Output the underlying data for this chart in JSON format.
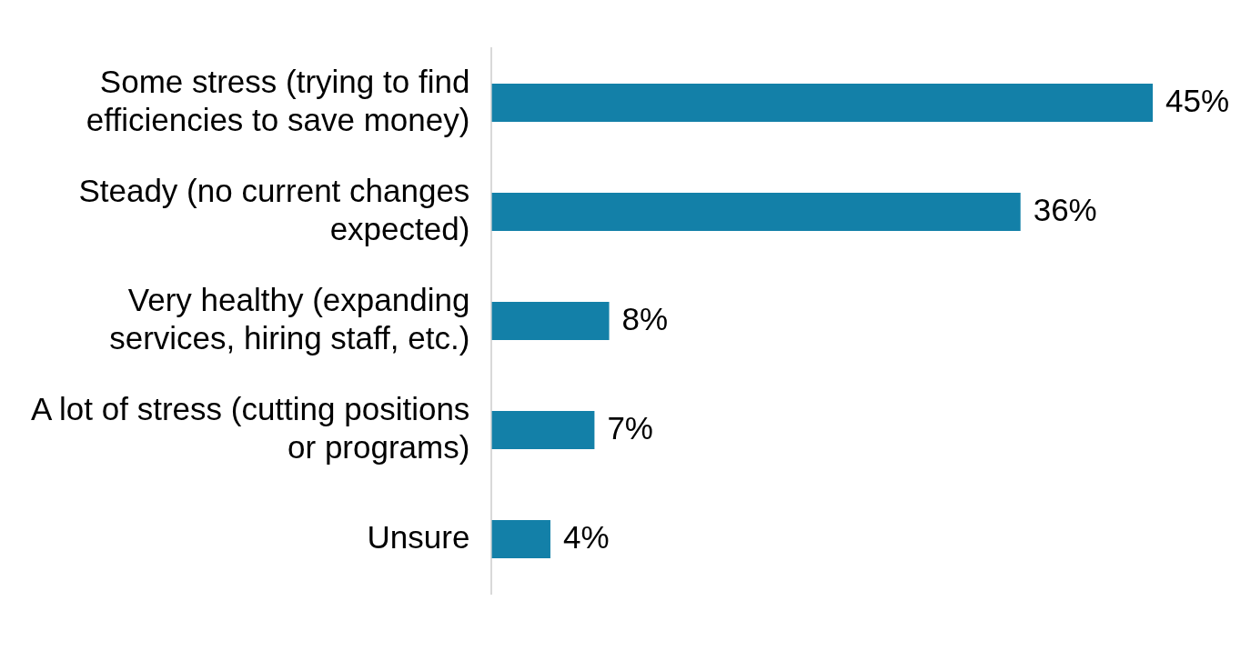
{
  "chart_data": {
    "type": "bar",
    "orientation": "horizontal",
    "categories": [
      "Some stress (trying to find efficiencies to save money)",
      "Steady (no current changes expected)",
      "Very healthy (expanding services, hiring staff, etc.)",
      "A lot of stress (cutting positions or programs)",
      "Unsure"
    ],
    "values": [
      45,
      36,
      8,
      7,
      4
    ],
    "color": "#1380a8",
    "data_labels": true,
    "value_labels": [
      "45%",
      "36%",
      "8%",
      "7%",
      "4%"
    ],
    "legend": false
  }
}
